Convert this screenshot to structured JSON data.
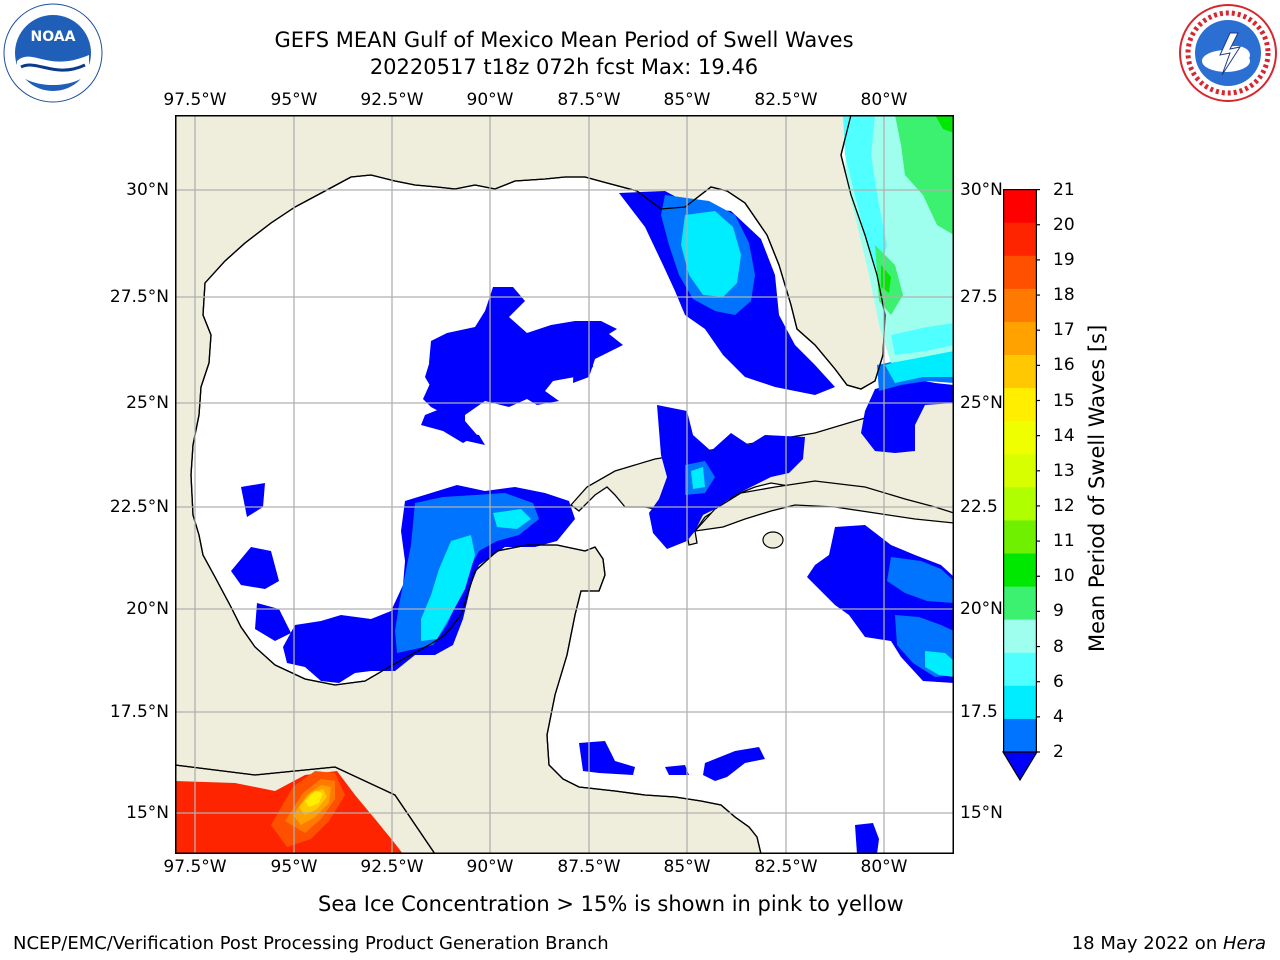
{
  "header": {
    "title_line1": "GEFS MEAN Gulf of Mexico Mean Period of Swell Waves",
    "title_line2": "20220517 t18z 072h fcst   Max: 19.46"
  },
  "logos": {
    "left": {
      "text": "NOAA",
      "ring_text": "NATIONAL OCEANIC AND ATMOSPHERIC ADMINISTRATION · U.S. DEPARTMENT OF COMMERCE"
    },
    "right": {
      "ring_text": "NATIONAL WEATHER SERVICE"
    }
  },
  "map": {
    "lon_ticks": [
      "97.5°W",
      "95°W",
      "92.5°W",
      "90°W",
      "87.5°W",
      "85°W",
      "82.5°W",
      "80°W"
    ],
    "lat_ticks_left": [
      "30°N",
      "27.5°N",
      "25°N",
      "22.5°N",
      "20°N",
      "17.5°N",
      "15°N"
    ],
    "lat_ticks_right": [
      "30°N",
      "27.5",
      "25°N",
      "22.5",
      "20°N",
      "17.5",
      "15°N"
    ],
    "colors": {
      "land": "#efeedd",
      "ocean": "#ffffff",
      "grid": "#b0b0b0",
      "coast": "#000000"
    }
  },
  "colorbar": {
    "label": "Mean Period of Swell Waves [s]",
    "ticks": [
      "21",
      "20",
      "19",
      "18",
      "17",
      "16",
      "15",
      "14",
      "13",
      "12",
      "11",
      "10",
      "9",
      "8",
      "6",
      "4",
      "2"
    ],
    "colors": [
      "#ff0000",
      "#ff2400",
      "#ff5000",
      "#ff7a00",
      "#ffa200",
      "#ffc800",
      "#ffee00",
      "#f0ff00",
      "#d8ff00",
      "#b0ff00",
      "#6ef000",
      "#00e800",
      "#3cf070",
      "#9effee",
      "#50ffff",
      "#00ecff",
      "#0074ff"
    ],
    "extend_color": "#0000ff"
  },
  "note": "Sea Ice Concentration > 15% is shown in pink to yellow",
  "footer": {
    "left": "NCEP/EMC/Verification Post Processing Product Generation Branch",
    "right_date": "18 May 2022 on ",
    "right_host": "Hera"
  }
}
